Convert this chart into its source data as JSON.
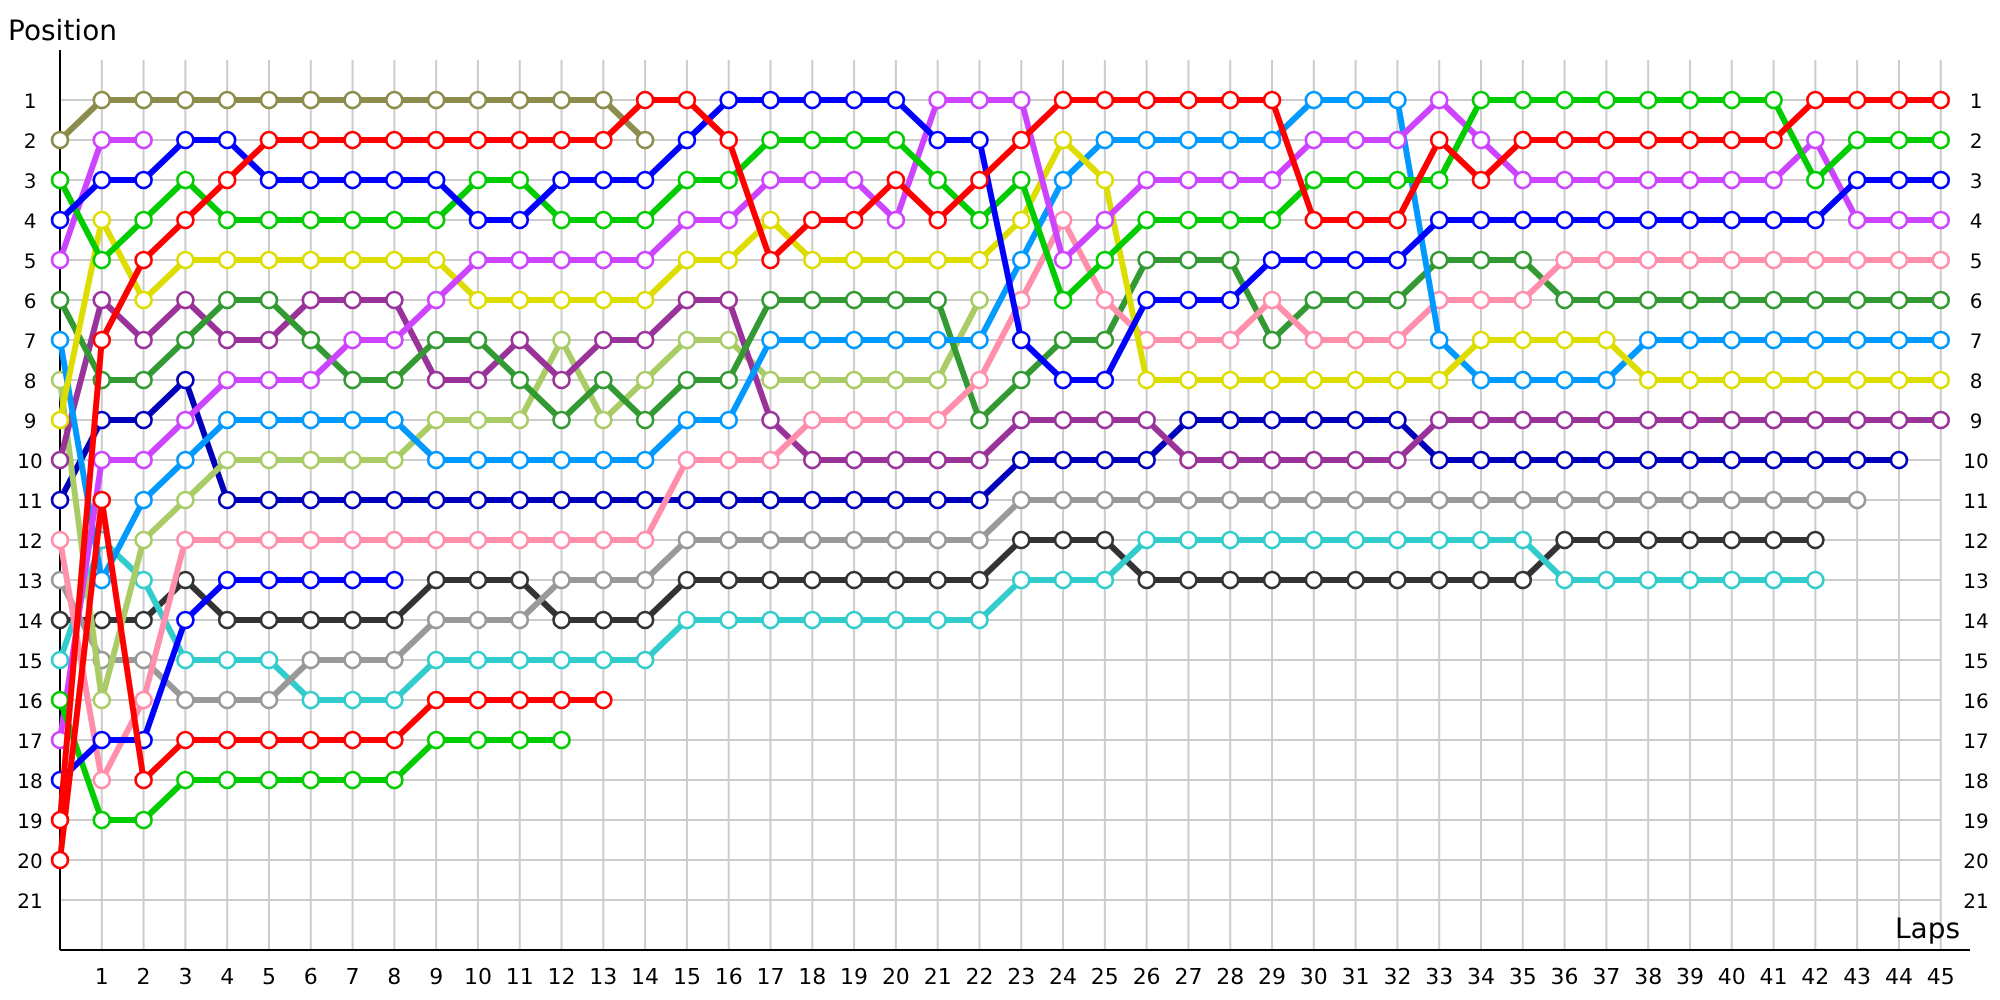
{
  "chart_data": {
    "type": "line",
    "xlabel": "Laps",
    "ylabel": "Position",
    "x": [
      0,
      1,
      2,
      3,
      4,
      5,
      6,
      7,
      8,
      9,
      10,
      11,
      12,
      13,
      14,
      15,
      16,
      17,
      18,
      19,
      20,
      21,
      22,
      23,
      24,
      25,
      26,
      27,
      28,
      29,
      30,
      31,
      32,
      33,
      34,
      35,
      36,
      37,
      38,
      39,
      40,
      41,
      42,
      43,
      44,
      45
    ],
    "xlim": [
      0,
      45.7
    ],
    "xticks": [
      1,
      2,
      3,
      4,
      5,
      6,
      7,
      8,
      9,
      10,
      11,
      12,
      13,
      14,
      15,
      16,
      17,
      18,
      19,
      20,
      21,
      22,
      23,
      24,
      25,
      26,
      27,
      28,
      29,
      30,
      31,
      32,
      33,
      34,
      35,
      36,
      37,
      38,
      39,
      40,
      41,
      42,
      43,
      44,
      45
    ],
    "ylim": [
      22.25,
      0
    ],
    "yticks": [
      1,
      2,
      3,
      4,
      5,
      6,
      7,
      8,
      9,
      10,
      11,
      12,
      13,
      14,
      15,
      16,
      17,
      18,
      19,
      20,
      21
    ],
    "y2lim": [
      22.25,
      0
    ],
    "y2ticks": [
      1,
      2,
      3,
      4,
      5,
      6,
      7,
      8,
      9,
      10,
      11,
      12,
      13,
      14,
      15,
      16,
      17,
      18,
      19,
      20,
      21
    ],
    "grid": true,
    "marker": "circle",
    "line_style": "solid",
    "series": [
      {
        "color": "#8c8c4c",
        "values": [
          2,
          1,
          1,
          1,
          1,
          1,
          1,
          1,
          1,
          1,
          1,
          1,
          1,
          1,
          2,
          null,
          null,
          null,
          null,
          null,
          null,
          null,
          null,
          null,
          null,
          null,
          null,
          null,
          null,
          null,
          null,
          null,
          null,
          null,
          null,
          null,
          null,
          null,
          null,
          null,
          null,
          null,
          null,
          null,
          null,
          null
        ]
      },
      {
        "color": "#333333",
        "values": [
          14,
          14,
          14,
          13,
          14,
          14,
          14,
          14,
          14,
          13,
          13,
          13,
          14,
          14,
          14,
          13,
          13,
          13,
          13,
          13,
          13,
          13,
          13,
          12,
          12,
          12,
          13,
          13,
          13,
          13,
          13,
          13,
          13,
          13,
          13,
          13,
          12,
          12,
          12,
          12,
          12,
          12,
          12,
          null,
          null,
          null
        ]
      },
      {
        "color": "#33cccc",
        "values": [
          15,
          12,
          13,
          15,
          15,
          15,
          16,
          16,
          16,
          15,
          15,
          15,
          15,
          15,
          15,
          14,
          14,
          14,
          14,
          14,
          14,
          14,
          14,
          13,
          13,
          13,
          12,
          12,
          12,
          12,
          12,
          12,
          12,
          12,
          12,
          12,
          13,
          13,
          13,
          13,
          13,
          13,
          13,
          null,
          null,
          null
        ]
      },
      {
        "color": "#999999",
        "values": [
          13,
          15,
          15,
          16,
          16,
          16,
          15,
          15,
          15,
          14,
          14,
          14,
          13,
          13,
          13,
          12,
          12,
          12,
          12,
          12,
          12,
          12,
          12,
          11,
          11,
          11,
          11,
          11,
          11,
          11,
          11,
          11,
          11,
          11,
          11,
          11,
          11,
          11,
          11,
          11,
          11,
          11,
          11,
          11,
          null,
          null
        ]
      },
      {
        "color": "#0000bb",
        "values": [
          11,
          9,
          9,
          8,
          11,
          11,
          11,
          11,
          11,
          11,
          11,
          11,
          11,
          11,
          11,
          11,
          11,
          11,
          11,
          11,
          11,
          11,
          11,
          10,
          10,
          10,
          10,
          9,
          9,
          9,
          9,
          9,
          9,
          10,
          10,
          10,
          10,
          10,
          10,
          10,
          10,
          10,
          10,
          10,
          10,
          null
        ]
      },
      {
        "color": "#aacc66",
        "values": [
          8,
          16,
          12,
          11,
          10,
          10,
          10,
          10,
          10,
          9,
          9,
          9,
          7,
          9,
          8,
          7,
          7,
          8,
          8,
          8,
          8,
          8,
          6,
          null,
          null,
          null,
          null,
          null,
          null,
          null,
          null,
          null,
          null,
          null,
          null,
          null,
          null,
          null,
          null,
          null,
          null,
          null,
          null,
          null,
          null,
          null
        ]
      },
      {
        "color": "#993399",
        "values": [
          10,
          6,
          7,
          6,
          7,
          7,
          6,
          6,
          6,
          8,
          8,
          7,
          8,
          7,
          7,
          6,
          6,
          9,
          10,
          10,
          10,
          10,
          10,
          9,
          9,
          9,
          9,
          10,
          10,
          10,
          10,
          10,
          10,
          9,
          9,
          9,
          9,
          9,
          9,
          9,
          9,
          9,
          9,
          9,
          9,
          9
        ]
      },
      {
        "color": "#339933",
        "values": [
          6,
          8,
          8,
          7,
          6,
          6,
          7,
          8,
          8,
          7,
          7,
          8,
          9,
          8,
          9,
          8,
          8,
          6,
          6,
          6,
          6,
          6,
          9,
          8,
          7,
          7,
          5,
          5,
          5,
          7,
          6,
          6,
          6,
          5,
          5,
          5,
          6,
          6,
          6,
          6,
          6,
          6,
          6,
          6,
          6,
          6
        ]
      },
      {
        "color": "#ff8fab",
        "values": [
          12,
          18,
          16,
          12,
          12,
          12,
          12,
          12,
          12,
          12,
          12,
          12,
          12,
          12,
          12,
          10,
          10,
          10,
          9,
          9,
          9,
          9,
          8,
          6,
          4,
          6,
          7,
          7,
          7,
          6,
          7,
          7,
          7,
          6,
          6,
          6,
          5,
          5,
          5,
          5,
          5,
          5,
          5,
          5,
          5,
          5
        ]
      },
      {
        "color": "#0099ff",
        "values": [
          7,
          13,
          11,
          10,
          9,
          9,
          9,
          9,
          9,
          10,
          10,
          10,
          10,
          10,
          10,
          9,
          9,
          7,
          7,
          7,
          7,
          7,
          7,
          5,
          3,
          2,
          2,
          2,
          2,
          2,
          1,
          1,
          1,
          7,
          8,
          8,
          8,
          8,
          7,
          7,
          7,
          7,
          7,
          7,
          7,
          7
        ]
      },
      {
        "color": "#dddd00",
        "values": [
          9,
          4,
          6,
          5,
          5,
          5,
          5,
          5,
          5,
          5,
          6,
          6,
          6,
          6,
          6,
          5,
          5,
          4,
          5,
          5,
          5,
          5,
          5,
          4,
          2,
          3,
          8,
          8,
          8,
          8,
          8,
          8,
          8,
          8,
          7,
          7,
          7,
          7,
          8,
          8,
          8,
          8,
          8,
          8,
          8,
          8
        ]
      },
      {
        "color": "#cc44ff",
        "values": [
          17,
          10,
          10,
          9,
          8,
          8,
          8,
          7,
          7,
          6,
          5,
          5,
          5,
          5,
          5,
          4,
          4,
          3,
          3,
          3,
          4,
          1,
          1,
          1,
          5,
          4,
          3,
          3,
          3,
          3,
          2,
          2,
          2,
          1,
          2,
          3,
          3,
          3,
          3,
          3,
          3,
          3,
          2,
          4,
          4,
          4
        ]
      },
      {
        "color": "#cc44ff",
        "values": [
          5,
          2,
          2,
          null,
          null,
          null,
          null,
          null,
          null,
          null,
          null,
          null,
          null,
          null,
          null,
          null,
          null,
          null,
          null,
          null,
          null,
          null,
          null,
          null,
          null,
          null,
          null,
          null,
          null,
          null,
          null,
          null,
          null,
          null,
          null,
          null,
          null,
          null,
          null,
          null,
          null,
          null,
          null,
          null,
          null,
          null
        ]
      },
      {
        "color": "#00cc00",
        "values": [
          16,
          19,
          19,
          18,
          18,
          18,
          18,
          18,
          18,
          17,
          17,
          17,
          17,
          null,
          null,
          null,
          null,
          null,
          null,
          null,
          null,
          null,
          null,
          null,
          null,
          null,
          null,
          null,
          null,
          null,
          null,
          null,
          null,
          null,
          null,
          null,
          null,
          null,
          null,
          null,
          null,
          null,
          null,
          null,
          null,
          null
        ]
      },
      {
        "color": "#0000ff",
        "values": [
          18,
          17,
          17,
          14,
          13,
          13,
          13,
          13,
          13,
          null,
          null,
          null,
          null,
          null,
          null,
          null,
          null,
          null,
          null,
          null,
          null,
          null,
          null,
          null,
          null,
          null,
          null,
          null,
          null,
          null,
          null,
          null,
          null,
          null,
          null,
          null,
          null,
          null,
          null,
          null,
          null,
          null,
          null,
          null,
          null,
          null
        ]
      },
      {
        "color": "#ff0000",
        "values": [
          20,
          11,
          18,
          17,
          17,
          17,
          17,
          17,
          17,
          16,
          16,
          16,
          16,
          16,
          null,
          null,
          null,
          null,
          null,
          null,
          null,
          null,
          null,
          null,
          null,
          null,
          null,
          null,
          null,
          null,
          null,
          null,
          null,
          null,
          null,
          null,
          null,
          null,
          null,
          null,
          null,
          null,
          null,
          null,
          null,
          null
        ]
      },
      {
        "color": "#00cc00",
        "values": [
          3,
          5,
          4,
          3,
          4,
          4,
          4,
          4,
          4,
          4,
          3,
          3,
          4,
          4,
          4,
          3,
          3,
          2,
          2,
          2,
          2,
          3,
          4,
          3,
          6,
          5,
          4,
          4,
          4,
          4,
          3,
          3,
          3,
          3,
          1,
          1,
          1,
          1,
          1,
          1,
          1,
          1,
          3,
          2,
          2,
          2
        ]
      },
      {
        "color": "#0000ff",
        "values": [
          4,
          3,
          3,
          2,
          2,
          3,
          3,
          3,
          3,
          3,
          4,
          4,
          3,
          3,
          3,
          2,
          1,
          1,
          1,
          1,
          1,
          2,
          2,
          7,
          8,
          8,
          6,
          6,
          6,
          5,
          5,
          5,
          5,
          4,
          4,
          4,
          4,
          4,
          4,
          4,
          4,
          4,
          4,
          3,
          3,
          3
        ]
      },
      {
        "color": "#ff0000",
        "values": [
          19,
          7,
          5,
          4,
          3,
          2,
          2,
          2,
          2,
          2,
          2,
          2,
          2,
          2,
          1,
          1,
          2,
          5,
          4,
          4,
          3,
          4,
          3,
          2,
          1,
          1,
          1,
          1,
          1,
          1,
          4,
          4,
          4,
          2,
          3,
          2,
          2,
          2,
          2,
          2,
          2,
          2,
          1,
          1,
          1,
          1
        ]
      }
    ]
  }
}
